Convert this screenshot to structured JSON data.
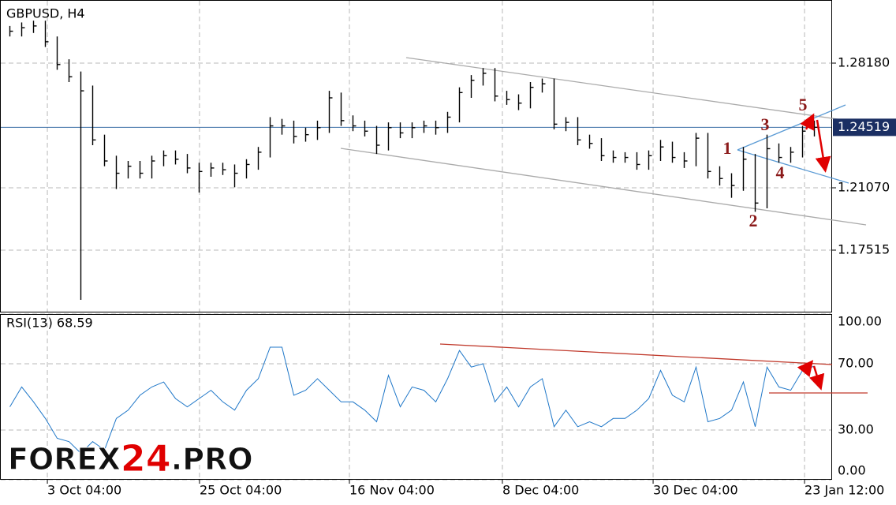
{
  "chart_data": [
    {
      "type": "ohlc",
      "title": "GBPUSD, H4",
      "color": "#000000",
      "close": [
        1.3,
        1.302,
        1.303,
        1.294,
        1.281,
        1.274,
        1.266,
        1.238,
        1.226,
        1.219,
        1.223,
        1.219,
        1.226,
        1.229,
        1.227,
        1.222,
        1.22,
        1.222,
        1.221,
        1.219,
        1.224,
        1.231,
        1.246,
        1.246,
        1.24,
        1.241,
        1.245,
        1.262,
        1.249,
        1.246,
        1.243,
        1.235,
        1.245,
        1.242,
        1.245,
        1.246,
        1.245,
        1.251,
        1.265,
        1.272,
        1.276,
        1.263,
        1.261,
        1.259,
        1.268,
        1.27,
        1.247,
        1.248,
        1.238,
        1.236,
        1.229,
        1.228,
        1.228,
        1.224,
        1.229,
        1.234,
        1.228,
        1.226,
        1.239,
        1.22,
        1.216,
        1.212,
        1.227,
        1.202,
        1.233,
        1.228,
        1.231,
        1.243,
        1.2452
      ],
      "high": [
        1.303,
        1.305,
        1.306,
        1.306,
        1.297,
        1.284,
        1.277,
        1.269,
        1.241,
        1.229,
        1.226,
        1.226,
        1.229,
        1.232,
        1.232,
        1.23,
        1.225,
        1.225,
        1.225,
        1.224,
        1.227,
        1.234,
        1.251,
        1.25,
        1.249,
        1.245,
        1.249,
        1.266,
        1.265,
        1.252,
        1.249,
        1.246,
        1.248,
        1.248,
        1.248,
        1.249,
        1.249,
        1.254,
        1.268,
        1.275,
        1.279,
        1.279,
        1.266,
        1.264,
        1.271,
        1.273,
        1.273,
        1.251,
        1.251,
        1.241,
        1.239,
        1.232,
        1.231,
        1.231,
        1.232,
        1.238,
        1.237,
        1.231,
        1.242,
        1.242,
        1.223,
        1.219,
        1.234,
        1.23,
        1.241,
        1.236,
        1.234,
        1.246,
        1.249
      ],
      "low": [
        1.297,
        1.297,
        1.299,
        1.291,
        1.278,
        1.271,
        1.1468,
        1.235,
        1.223,
        1.21,
        1.216,
        1.216,
        1.216,
        1.223,
        1.224,
        1.219,
        1.208,
        1.217,
        1.218,
        1.211,
        1.216,
        1.221,
        1.228,
        1.241,
        1.236,
        1.237,
        1.238,
        1.242,
        1.246,
        1.243,
        1.24,
        1.23,
        1.232,
        1.239,
        1.239,
        1.242,
        1.241,
        1.242,
        1.248,
        1.262,
        1.269,
        1.26,
        1.258,
        1.255,
        1.256,
        1.265,
        1.244,
        1.243,
        1.235,
        1.233,
        1.226,
        1.225,
        1.225,
        1.221,
        1.221,
        1.226,
        1.225,
        1.222,
        1.223,
        1.216,
        1.212,
        1.205,
        1.209,
        1.197,
        1.199,
        1.225,
        1.225,
        1.228,
        1.24
      ],
      "xlim": [
        0,
        70
      ],
      "xticks": [
        {
          "value": 3.67,
          "label": "3 Oct 04:00"
        },
        {
          "value": 16.53,
          "label": "25 Oct 04:00"
        },
        {
          "value": 29.2,
          "label": "16 Nov 04:00"
        },
        {
          "value": 42.13,
          "label": "8 Dec 04:00"
        },
        {
          "value": 54.87,
          "label": "30 Dec 04:00"
        },
        {
          "value": 67.67,
          "label": "23 Jan 12:00"
        }
      ],
      "ylim": [
        1.14005,
        1.3178
      ],
      "yticks": [
        1.17515,
        {
          "value": 1.2107,
          "label": "1.21070"
        },
        {
          "value": 1.2818,
          "label": "1.28180"
        }
      ],
      "current_price": 1.24519,
      "wave_labels": [
        "1",
        "2",
        "3",
        "4",
        "5"
      ],
      "watermark": [
        "FOREX",
        "24",
        ".PRO"
      ]
    },
    {
      "type": "line",
      "title": "RSI(13) 68.59",
      "color": "#1f77c8",
      "values": [
        44,
        56,
        47,
        37,
        25,
        23,
        16,
        23,
        18,
        37,
        42,
        51,
        56,
        59,
        49,
        44,
        49,
        54,
        47,
        42,
        54,
        61,
        80,
        80,
        51,
        54,
        61,
        54,
        47,
        47,
        42,
        35,
        63,
        44,
        56,
        54,
        47,
        61,
        78,
        68,
        70,
        47,
        56,
        44,
        56,
        61,
        32,
        42,
        32,
        35,
        32,
        37,
        37,
        42,
        49,
        66,
        51,
        47,
        68,
        35,
        37,
        42,
        59,
        32,
        68,
        56,
        54,
        66,
        68.59
      ],
      "ylim": [
        0,
        100
      ],
      "yticks": [
        {
          "value": 0,
          "label": "0.00"
        },
        {
          "value": 30,
          "label": "30.00"
        },
        {
          "value": 70,
          "label": "70.00"
        },
        {
          "value": 100,
          "label": "100.00"
        }
      ]
    }
  ]
}
